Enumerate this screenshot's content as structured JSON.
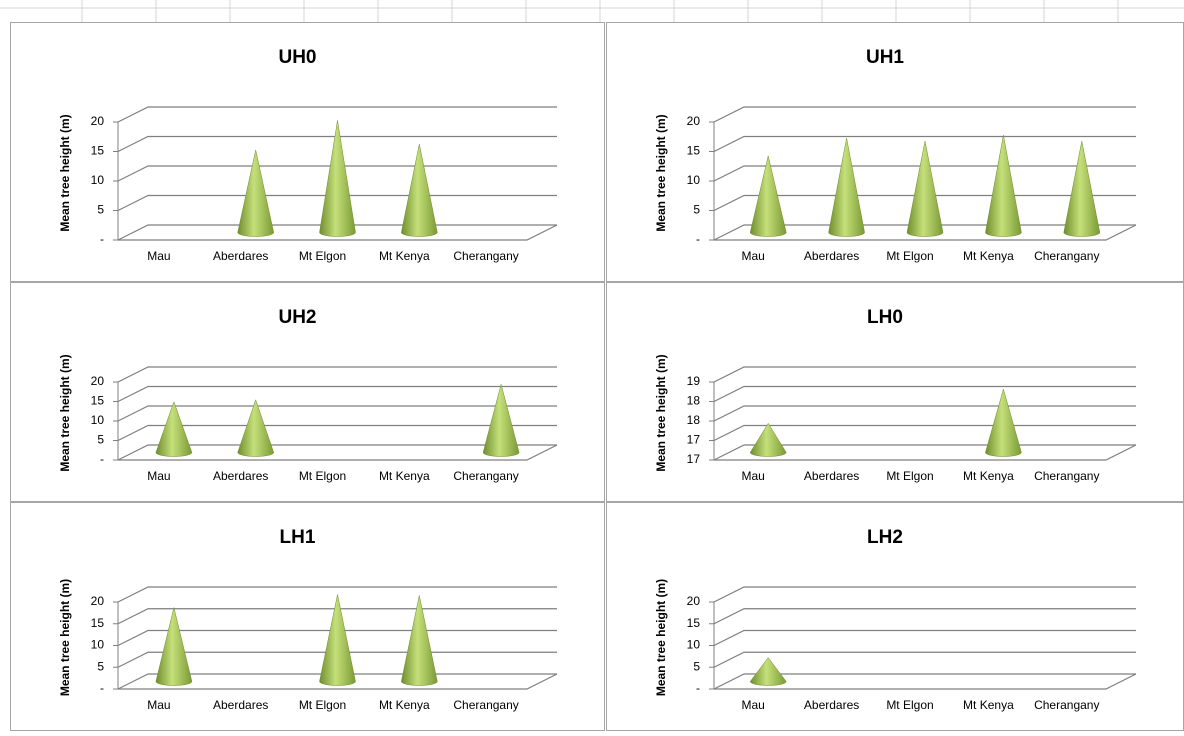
{
  "chart_data": [
    {
      "type": "cone",
      "title": "UH0",
      "ylabel": "Mean tree height (m)",
      "categories": [
        "Mau",
        "Aberdares",
        "Mt Elgon",
        "Mt Kenya",
        "Cherangany"
      ],
      "values": [
        null,
        14,
        19,
        15,
        null
      ],
      "color": "#9bbb59",
      "ylim": [
        0,
        20
      ],
      "yticks": [
        {
          "value": 0,
          "label": "-"
        },
        5,
        10,
        15,
        20
      ],
      "grid": true
    },
    {
      "type": "cone",
      "title": "UH1",
      "ylabel": "Mean tree height (m)",
      "categories": [
        "Mau",
        "Aberdares",
        "Mt Elgon",
        "Mt Kenya",
        "Cherangany"
      ],
      "values": [
        13,
        16,
        15.5,
        16.5,
        15.5
      ],
      "color": "#9bbb59",
      "ylim": [
        0,
        20
      ],
      "yticks": [
        {
          "value": 0,
          "label": "-"
        },
        5,
        10,
        15,
        20
      ],
      "grid": true
    },
    {
      "type": "cone",
      "title": "UH2",
      "ylabel": "Mean tree height (m)",
      "categories": [
        "Mau",
        "Aberdares",
        "Mt Elgon",
        "Mt Kenya",
        "Cherangany"
      ],
      "values": [
        13,
        13.5,
        null,
        null,
        17.5
      ],
      "color": "#9bbb59",
      "ylim": [
        0,
        20
      ],
      "yticks": [
        {
          "value": 0,
          "label": "-"
        },
        5,
        10,
        15,
        20
      ],
      "grid": true
    },
    {
      "type": "cone",
      "title": "LH0",
      "ylabel": "Mean tree height (m)",
      "categories": [
        "Mau",
        "Aberdares",
        "Mt Elgon",
        "Mt Kenya",
        "Cherangany"
      ],
      "values": [
        17.6,
        null,
        null,
        18.3,
        null
      ],
      "color": "#9bbb59",
      "ylim": [
        17,
        18.6
      ],
      "yticks": [
        {
          "value": 17,
          "label": "17"
        },
        {
          "value": 17.4,
          "label": "17"
        },
        {
          "value": 17.8,
          "label": "18"
        },
        {
          "value": 18.2,
          "label": "18"
        },
        {
          "value": 18.6,
          "label": "19"
        }
      ],
      "grid": true
    },
    {
      "type": "cone",
      "title": "LH1",
      "ylabel": "Mean tree height (m)",
      "categories": [
        "Mau",
        "Aberdares",
        "Mt Elgon",
        "Mt Kenya",
        "Cherangany"
      ],
      "values": [
        17,
        null,
        20,
        19.8,
        null
      ],
      "color": "#9bbb59",
      "ylim": [
        0,
        20
      ],
      "yticks": [
        {
          "value": 0,
          "label": "-"
        },
        5,
        10,
        15,
        20
      ],
      "grid": true
    },
    {
      "type": "cone",
      "title": "LH2",
      "ylabel": "Mean tree height (m)",
      "categories": [
        "Mau",
        "Aberdares",
        "Mt Elgon",
        "Mt Kenya",
        "Cherangany"
      ],
      "values": [
        5.5,
        null,
        null,
        null,
        null
      ],
      "color": "#9bbb59",
      "ylim": [
        0,
        20
      ],
      "yticks": [
        {
          "value": 0,
          "label": "-"
        },
        5,
        10,
        15,
        20
      ],
      "grid": true
    }
  ]
}
